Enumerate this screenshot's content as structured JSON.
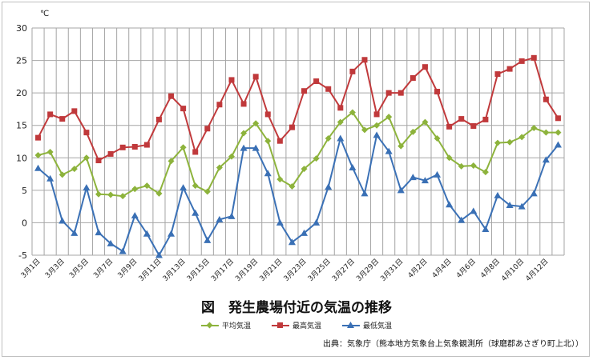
{
  "chart_data": {
    "type": "line",
    "title": "図　発生農場付近の気温の推移",
    "unit": "℃",
    "ylim": [
      -5,
      30
    ],
    "yticks": [
      -5,
      0,
      5,
      10,
      15,
      20,
      25,
      30
    ],
    "grid": true,
    "legend_position": "bottom",
    "categories": [
      "3月1日",
      "3月2日",
      "3月3日",
      "3月4日",
      "3月5日",
      "3月6日",
      "3月7日",
      "3月8日",
      "3月9日",
      "3月10日",
      "3月11日",
      "3月12日",
      "3月13日",
      "3月14日",
      "3月15日",
      "3月16日",
      "3月17日",
      "3月18日",
      "3月19日",
      "3月20日",
      "3月21日",
      "3月22日",
      "3月23日",
      "3月24日",
      "3月25日",
      "3月26日",
      "3月27日",
      "3月28日",
      "3月29日",
      "3月30日",
      "3月31日",
      "4月1日",
      "4月2日",
      "4月3日",
      "4月4日",
      "4月5日",
      "4月6日",
      "4月7日",
      "4月8日",
      "4月9日",
      "4月10日",
      "4月11日",
      "4月12日",
      "4月13日"
    ],
    "tick_labels": [
      "3月1日",
      "",
      "3月3日",
      "",
      "3月5日",
      "",
      "3月7日",
      "",
      "3月9日",
      "",
      "3月11日",
      "",
      "3月13日",
      "",
      "3月15日",
      "",
      "3月17日",
      "",
      "3月19日",
      "",
      "3月21日",
      "",
      "3月23日",
      "",
      "3月25日",
      "",
      "3月27日",
      "",
      "3月29日",
      "",
      "3月31日",
      "",
      "4月2日",
      "",
      "4月4日",
      "",
      "4月6日",
      "",
      "4月8日",
      "",
      "4月10日",
      "",
      "4月12日",
      ""
    ],
    "series": [
      {
        "name": "平均気温",
        "color": "#8db33c",
        "marker": "diamond",
        "values": [
          10.4,
          10.9,
          7.4,
          8.3,
          10.0,
          4.4,
          4.3,
          4.1,
          5.2,
          5.7,
          4.5,
          9.5,
          11.6,
          5.7,
          4.8,
          8.5,
          10.2,
          13.8,
          15.3,
          12.6,
          6.7,
          5.6,
          8.3,
          9.9,
          13.0,
          15.5,
          17.0,
          14.3,
          15.0,
          16.3,
          11.8,
          14.0,
          15.5,
          13.0,
          10.0,
          8.7,
          8.8,
          7.8,
          12.3,
          12.4,
          13.2,
          14.6,
          13.9,
          13.9
        ]
      },
      {
        "name": "最高気温",
        "color": "#c0393b",
        "marker": "square",
        "values": [
          13.1,
          16.7,
          16.0,
          17.2,
          13.9,
          9.6,
          10.6,
          11.6,
          11.7,
          12.0,
          15.9,
          19.5,
          17.6,
          10.9,
          14.5,
          18.2,
          22.0,
          18.3,
          22.5,
          16.7,
          12.6,
          14.7,
          20.3,
          21.8,
          20.6,
          17.7,
          23.3,
          25.1,
          16.7,
          20.0,
          20.0,
          22.3,
          24.0,
          20.2,
          14.8,
          16.0,
          14.9,
          15.9,
          22.9,
          23.7,
          24.9,
          25.4,
          19.0,
          16.1
        ]
      },
      {
        "name": "最低気温",
        "color": "#3a70b5",
        "marker": "triangle",
        "values": [
          8.4,
          6.8,
          0.3,
          -1.6,
          5.4,
          -1.5,
          -3.2,
          -4.4,
          1.1,
          -1.7,
          -5.0,
          -1.7,
          5.4,
          1.5,
          -2.7,
          0.5,
          1.0,
          11.5,
          11.5,
          7.6,
          0.0,
          -3.0,
          -1.6,
          0.0,
          5.5,
          13.0,
          8.5,
          4.5,
          13.5,
          11.0,
          5.0,
          7.0,
          6.5,
          7.4,
          2.8,
          0.4,
          1.8,
          -1.0,
          4.2,
          2.7,
          2.5,
          4.5,
          9.7,
          12.0
        ]
      }
    ]
  },
  "source": "出典：気象庁（熊本地方気象台上気象観測所（球磨郡あさぎり町上北））"
}
